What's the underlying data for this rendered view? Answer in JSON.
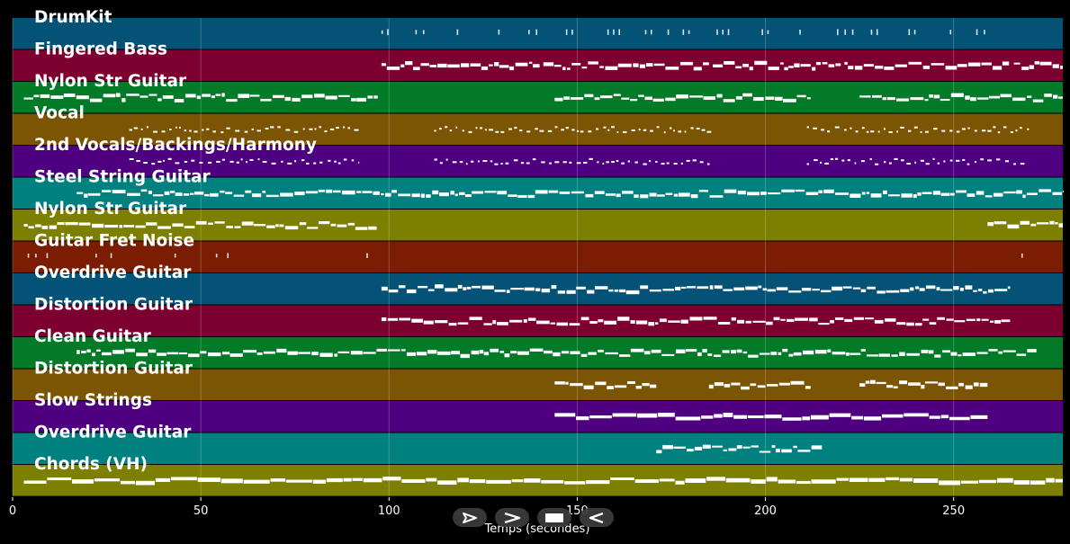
{
  "chart_data": {
    "type": "piano-roll",
    "xlabel": "Temps (secondes)",
    "xlim": [
      0,
      279
    ],
    "xticks": [
      0,
      50,
      100,
      150,
      200,
      250
    ],
    "grid": true,
    "tracks": [
      {
        "name": "DrumKit",
        "color": "#045275",
        "style": "ticks",
        "segments": [
          [
            98,
            98.5
          ],
          [
            99.5,
            100
          ],
          [
            107,
            107.5
          ],
          [
            109,
            109.5
          ],
          [
            118,
            118.5
          ],
          [
            129,
            129.5
          ],
          [
            137,
            137.5
          ],
          [
            139,
            139.5
          ],
          [
            147,
            147.5
          ],
          [
            148.5,
            149
          ],
          [
            158,
            158.5
          ],
          [
            159.5,
            160
          ],
          [
            161,
            161.5
          ],
          [
            168,
            168.5
          ],
          [
            169.5,
            170
          ],
          [
            174,
            174.5
          ],
          [
            178,
            178.5
          ],
          [
            179.5,
            180
          ],
          [
            187,
            187.5
          ],
          [
            188.5,
            189
          ],
          [
            190,
            190.5
          ],
          [
            199,
            199.5
          ],
          [
            200.5,
            201
          ],
          [
            209,
            209.5
          ],
          [
            219,
            219.5
          ],
          [
            221,
            221.5
          ],
          [
            223,
            223.5
          ],
          [
            228,
            228.5
          ],
          [
            229.5,
            230
          ],
          [
            238,
            238.5
          ],
          [
            239.5,
            240
          ],
          [
            249,
            249.5
          ],
          [
            256,
            256.5
          ],
          [
            258,
            258.5
          ]
        ]
      },
      {
        "name": "Fingered Bass",
        "color": "#7c0030",
        "style": "dense",
        "segments": [
          [
            98,
            140
          ],
          [
            141,
            185
          ],
          [
            186,
            220
          ],
          [
            221,
            265
          ],
          [
            266,
            279
          ]
        ]
      },
      {
        "name": "Nylon Str Guitar",
        "color": "#027a28",
        "style": "dense",
        "segments": [
          [
            3,
            97
          ],
          [
            144,
            212
          ],
          [
            225,
            279
          ]
        ]
      },
      {
        "name": "Vocal",
        "color": "#7c5504",
        "style": "dots",
        "segments": [
          [
            31,
            92
          ],
          [
            112,
            186
          ],
          [
            211,
            270
          ]
        ]
      },
      {
        "name": "2nd Vocals/Backings/Harmony",
        "color": "#4e0080",
        "style": "dots",
        "segments": [
          [
            31,
            92
          ],
          [
            112,
            186
          ],
          [
            211,
            270
          ]
        ]
      },
      {
        "name": "Steel String Guitar",
        "color": "#018080",
        "style": "dense",
        "segments": [
          [
            17,
            279
          ]
        ]
      },
      {
        "name": "Nylon Str Guitar",
        "color": "#7d7f00",
        "style": "dense",
        "segments": [
          [
            3,
            97
          ],
          [
            259,
            279
          ]
        ]
      },
      {
        "name": "Guitar Fret Noise",
        "color": "#7a1d02",
        "style": "ticks",
        "segments": [
          [
            4,
            4.5
          ],
          [
            6,
            6.5
          ],
          [
            9,
            9.5
          ],
          [
            22,
            22.5
          ],
          [
            26,
            26.5
          ],
          [
            43,
            43.5
          ],
          [
            54,
            54.5
          ],
          [
            57,
            57.5
          ],
          [
            94,
            94.5
          ],
          [
            268,
            268.5
          ]
        ]
      },
      {
        "name": "Overdrive Guitar",
        "color": "#045275",
        "style": "dense",
        "segments": [
          [
            98,
            265
          ]
        ]
      },
      {
        "name": "Distortion Guitar",
        "color": "#7c0030",
        "style": "dense",
        "segments": [
          [
            98,
            265
          ]
        ]
      },
      {
        "name": "Clean Guitar",
        "color": "#027a28",
        "style": "dense",
        "segments": [
          [
            17,
            272
          ]
        ]
      },
      {
        "name": "Distortion Guitar",
        "color": "#7c5504",
        "style": "dense",
        "segments": [
          [
            144,
            171
          ],
          [
            185,
            212
          ],
          [
            225,
            259
          ]
        ]
      },
      {
        "name": "Slow Strings",
        "color": "#4e0080",
        "style": "blocks",
        "segments": [
          [
            144,
            259
          ]
        ]
      },
      {
        "name": "Overdrive Guitar",
        "color": "#018080",
        "style": "dense",
        "segments": [
          [
            171,
            215
          ]
        ]
      },
      {
        "name": "Chords (VH)",
        "color": "#7d7f00",
        "style": "blocks",
        "segments": [
          [
            3,
            279
          ]
        ]
      }
    ]
  },
  "controls": [
    {
      "icon": "play-icon"
    },
    {
      "icon": "forward-icon"
    },
    {
      "icon": "stop-icon"
    },
    {
      "icon": "reverse-icon"
    }
  ]
}
